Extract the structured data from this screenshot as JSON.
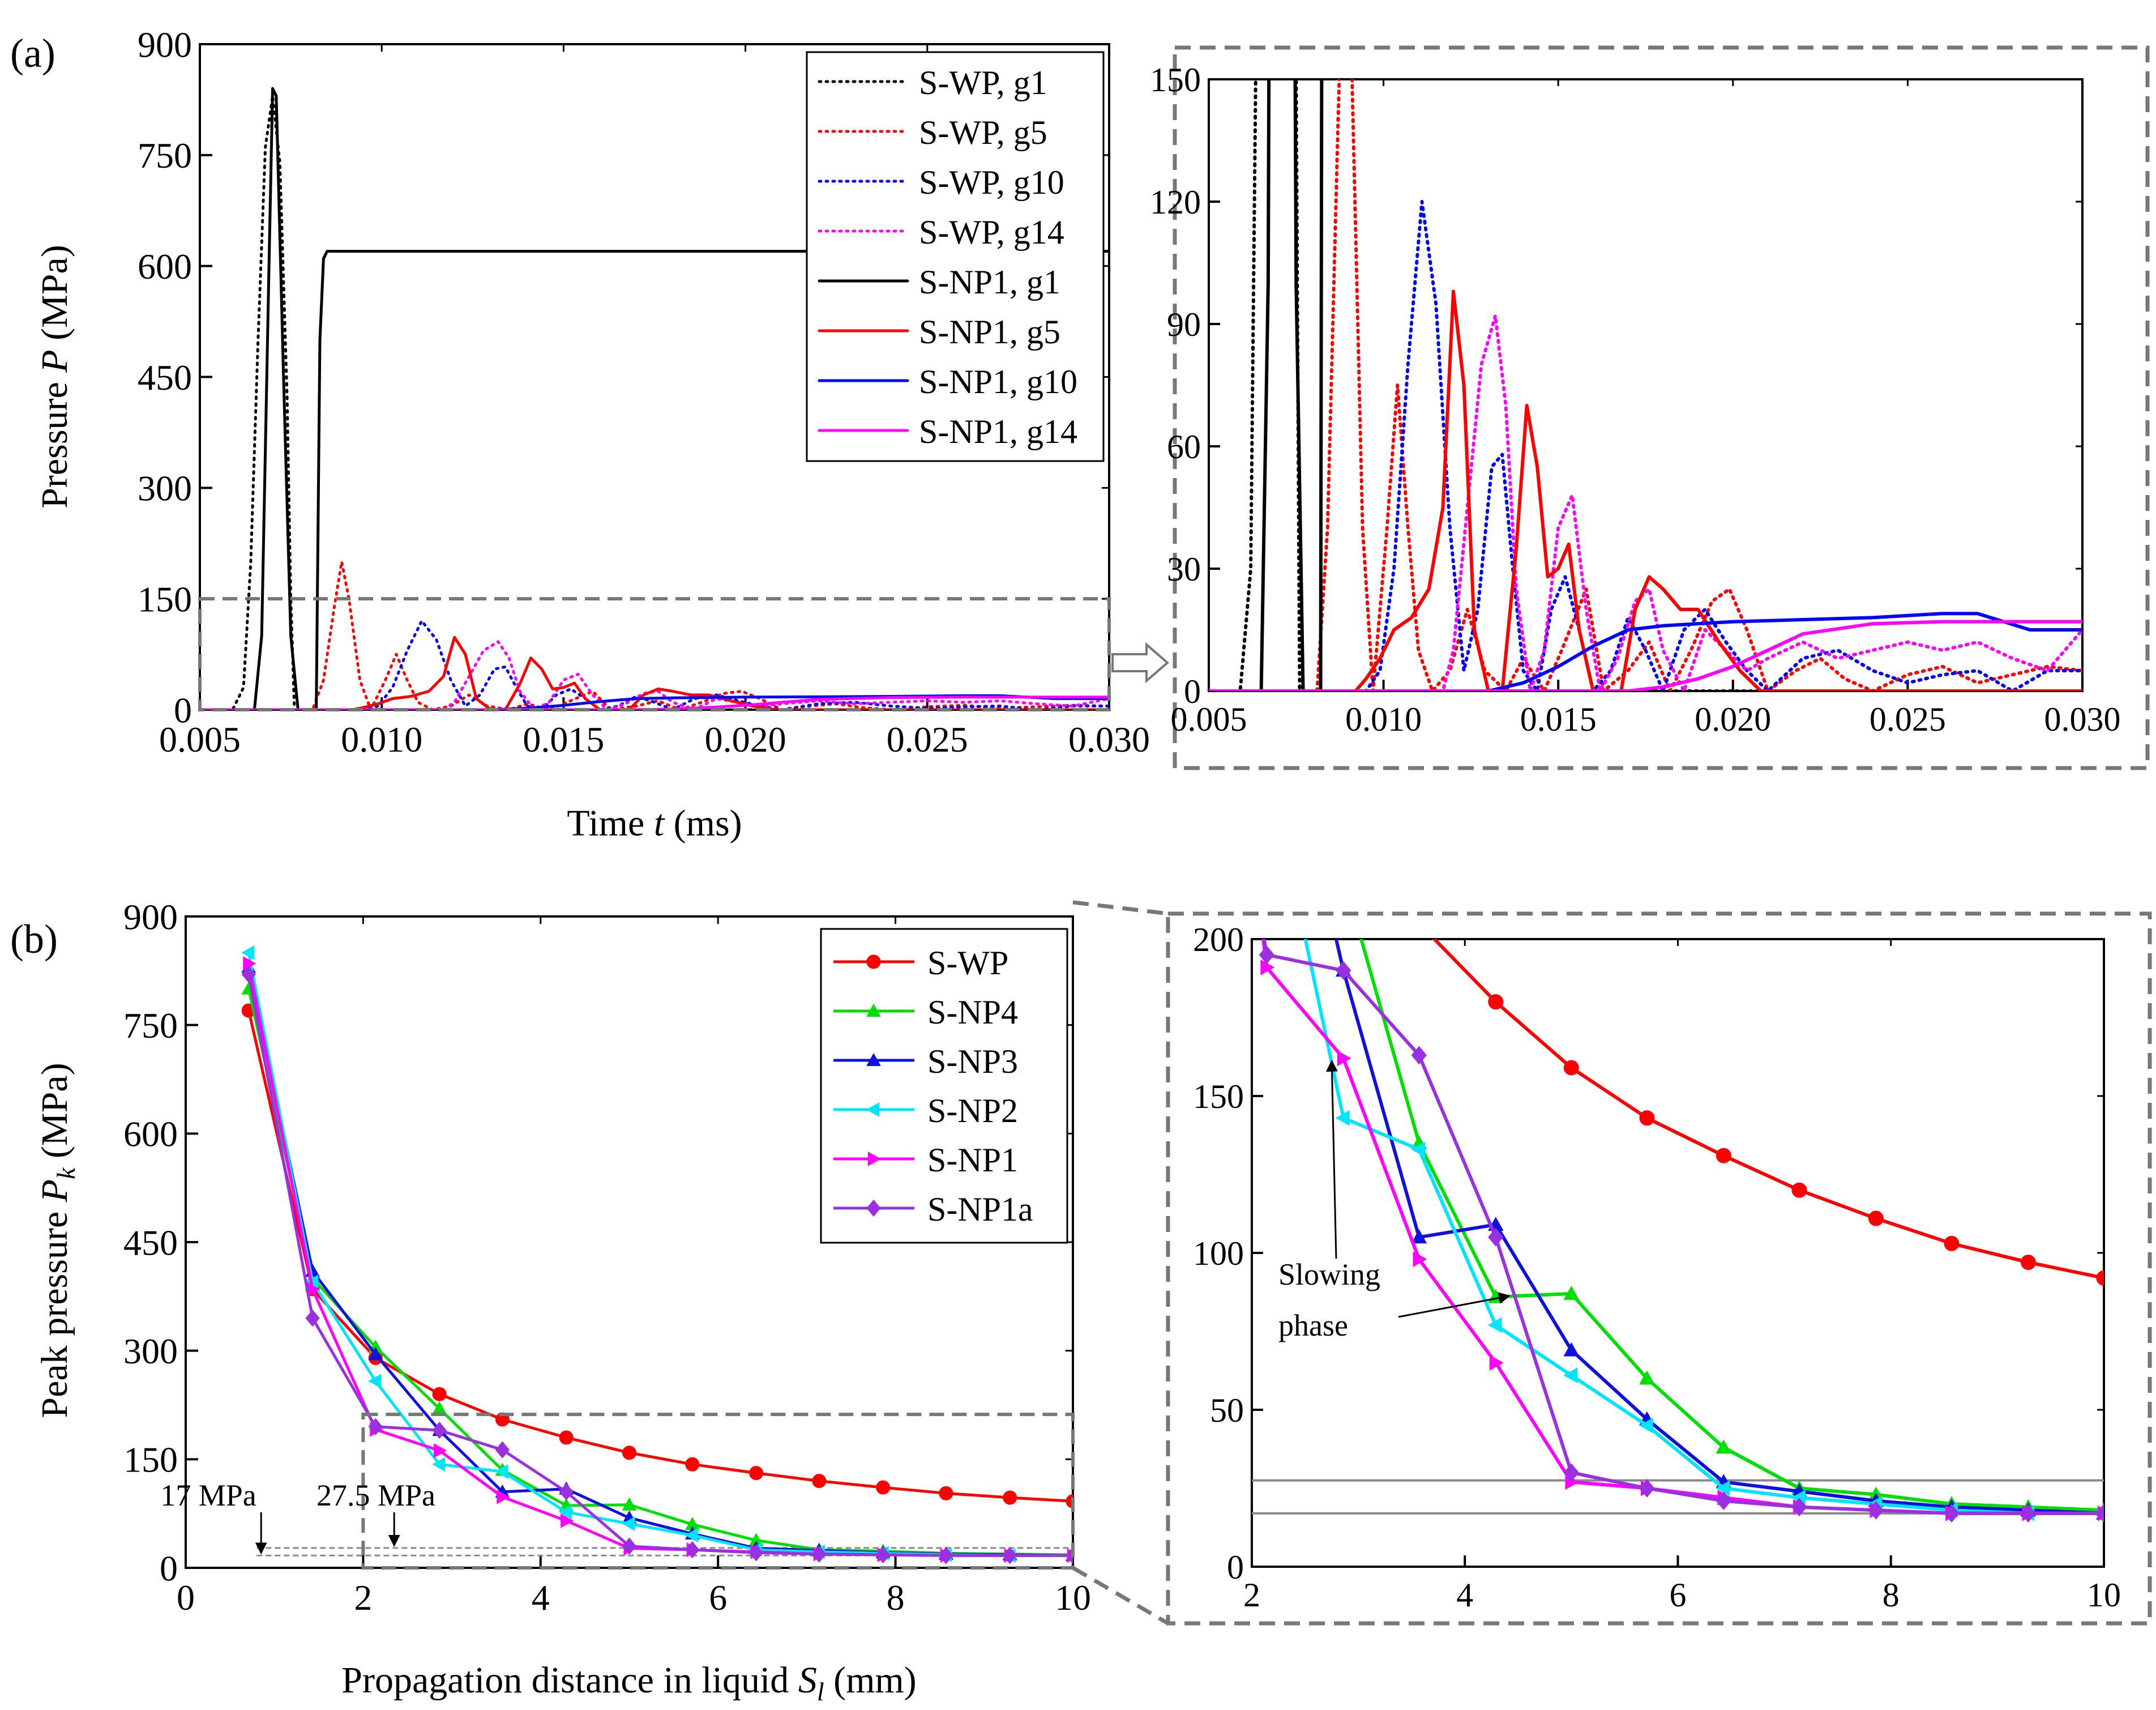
{
  "colors": {
    "black": "#000000",
    "red": "#ff0000",
    "blue": "#0000ff",
    "magenta": "#ff00ff",
    "green": "#00e000",
    "navy": "#1010e0",
    "cyan": "#00e5ff",
    "violet": "#9b30e0",
    "frame": "#777777",
    "refline": "#888888"
  },
  "chart_data": [
    {
      "id": "a-main",
      "type": "line",
      "panel_label": "(a)",
      "xlabel_prefix": "Time ",
      "xlabel_var": "t",
      "xlabel_suffix": " (ms)",
      "ylabel_prefix": "Pressure ",
      "ylabel_var": "P",
      "ylabel_suffix": " (MPa)",
      "xlim": [
        0.005,
        0.03
      ],
      "ylim": [
        0,
        900
      ],
      "xticks": [
        0.005,
        0.01,
        0.015,
        0.02,
        0.025,
        0.03
      ],
      "xtick_labels": [
        "0.005",
        "0.010",
        "0.015",
        "0.020",
        "0.025",
        "0.030"
      ],
      "yticks": [
        0,
        150,
        300,
        450,
        600,
        750,
        900
      ],
      "ytick_labels": [
        "0",
        "150",
        "300",
        "450",
        "600",
        "750",
        "900"
      ],
      "legend_position": "top-right",
      "zoom_box": {
        "x": [
          0.005,
          0.03
        ],
        "y": [
          0,
          150
        ]
      },
      "series": [
        {
          "name": "S-WP, g1",
          "color": "#000000",
          "dash": "dot",
          "x": [
            0.005,
            0.0059,
            0.0062,
            0.0064,
            0.0066,
            0.0068,
            0.007,
            0.0072,
            0.0074,
            0.0075,
            0.0076,
            0.03
          ],
          "y": [
            0,
            0,
            30,
            200,
            500,
            760,
            830,
            740,
            420,
            150,
            0,
            0
          ]
        },
        {
          "name": "S-WP, g5",
          "color": "#ff0000",
          "dash": "dot",
          "x": [
            0.005,
            0.0081,
            0.0084,
            0.0087,
            0.0089,
            0.0091,
            0.0094,
            0.0097,
            0.0101,
            0.0104,
            0.0107,
            0.011,
            0.0114,
            0.0119,
            0.0124,
            0.0129,
            0.0135,
            0.014,
            0.0146,
            0.0151,
            0.0158,
            0.0163,
            0.017,
            0.0176,
            0.0182,
            0.0188,
            0.0194,
            0.0199,
            0.0204,
            0.021,
            0.0218,
            0.0225,
            0.0232,
            0.024,
            0.025,
            0.026,
            0.027,
            0.028,
            0.029,
            0.03
          ],
          "y": [
            0,
            0,
            40,
            140,
            200,
            150,
            40,
            0,
            40,
            75,
            40,
            10,
            0,
            5,
            20,
            5,
            0,
            8,
            0,
            10,
            25,
            0,
            5,
            12,
            0,
            10,
            22,
            25,
            15,
            0,
            5,
            8,
            3,
            0,
            4,
            6,
            2,
            4,
            6,
            5
          ]
        },
        {
          "name": "S-WP, g10",
          "color": "#0000ff",
          "dash": "dot",
          "x": [
            0.005,
            0.0095,
            0.0099,
            0.0103,
            0.0107,
            0.0111,
            0.0115,
            0.0119,
            0.0123,
            0.0127,
            0.0131,
            0.0134,
            0.0137,
            0.014,
            0.0144,
            0.0148,
            0.0152,
            0.0156,
            0.016,
            0.0165,
            0.017,
            0.0175,
            0.018,
            0.0186,
            0.0192,
            0.0198,
            0.0204,
            0.021,
            0.022,
            0.023,
            0.024,
            0.025,
            0.026,
            0.027,
            0.028,
            0.029,
            0.03
          ],
          "y": [
            0,
            0,
            5,
            30,
            80,
            120,
            95,
            40,
            5,
            20,
            55,
            58,
            30,
            5,
            0,
            20,
            28,
            15,
            0,
            5,
            18,
            10,
            0,
            15,
            20,
            12,
            5,
            0,
            8,
            10,
            5,
            2,
            4,
            5,
            0,
            5,
            5
          ]
        },
        {
          "name": "S-WP, g14",
          "color": "#ff00ff",
          "dash": "dot",
          "x": [
            0.005,
            0.0117,
            0.012,
            0.0124,
            0.0128,
            0.0132,
            0.0135,
            0.0138,
            0.0142,
            0.0146,
            0.015,
            0.0154,
            0.0158,
            0.0162,
            0.0167,
            0.0172,
            0.0176,
            0.018,
            0.0186,
            0.0192,
            0.0198,
            0.0204,
            0.021,
            0.022,
            0.023,
            0.024,
            0.025,
            0.026,
            0.027,
            0.028,
            0.029,
            0.03
          ],
          "y": [
            0,
            0,
            10,
            45,
            80,
            92,
            70,
            25,
            0,
            10,
            40,
            48,
            20,
            0,
            8,
            22,
            25,
            10,
            0,
            15,
            10,
            5,
            8,
            12,
            8,
            10,
            12,
            10,
            12,
            8,
            5,
            15
          ]
        },
        {
          "name": "S-NP1, g1",
          "color": "#000000",
          "dash": "solid",
          "x": [
            0.005,
            0.0065,
            0.0067,
            0.0069,
            0.007,
            0.0071,
            0.0073,
            0.0075,
            0.0077,
            0.008,
            0.0082,
            0.0083,
            0.0084,
            0.0085,
            0.026,
            0.03
          ],
          "y": [
            0,
            0,
            100,
            600,
            840,
            830,
            450,
            100,
            0,
            0,
            0,
            500,
            610,
            620,
            620,
            620
          ]
        },
        {
          "name": "S-NP1, g5",
          "color": "#ff0000",
          "dash": "solid",
          "x": [
            0.005,
            0.0092,
            0.0095,
            0.0099,
            0.0103,
            0.0108,
            0.0113,
            0.0117,
            0.012,
            0.0123,
            0.0126,
            0.013,
            0.0134,
            0.0138,
            0.0141,
            0.0144,
            0.0147,
            0.015,
            0.0153,
            0.0156,
            0.016,
            0.0164,
            0.0168,
            0.0172,
            0.0176,
            0.018,
            0.0185,
            0.019,
            0.0196,
            0.0202,
            0.0208,
            0.0213,
            0.0218,
            0.0225,
            0.03
          ],
          "y": [
            0,
            0,
            3,
            8,
            15,
            18,
            25,
            45,
            98,
            75,
            15,
            0,
            0,
            35,
            70,
            55,
            28,
            30,
            36,
            15,
            0,
            0,
            0,
            20,
            28,
            25,
            20,
            20,
            12,
            5,
            0,
            0,
            0,
            0,
            0
          ]
        },
        {
          "name": "S-NP1, g10",
          "color": "#0000ff",
          "dash": "solid",
          "x": [
            0.005,
            0.013,
            0.014,
            0.015,
            0.016,
            0.017,
            0.018,
            0.02,
            0.022,
            0.024,
            0.026,
            0.027,
            0.0285,
            0.03
          ],
          "y": [
            0,
            0,
            2,
            6,
            11,
            15,
            16,
            17,
            17.5,
            18,
            19,
            19,
            15,
            15
          ]
        },
        {
          "name": "S-NP1, g14",
          "color": "#ff00ff",
          "dash": "solid",
          "x": [
            0.005,
            0.017,
            0.018,
            0.019,
            0.02,
            0.021,
            0.022,
            0.024,
            0.026,
            0.028,
            0.03
          ],
          "y": [
            0,
            0,
            1,
            3,
            6,
            10,
            14,
            16.5,
            17,
            17,
            17
          ]
        }
      ]
    },
    {
      "id": "a-zoom",
      "type": "line",
      "xlim": [
        0.005,
        0.03
      ],
      "ylim": [
        0,
        150
      ],
      "xticks": [
        0.005,
        0.01,
        0.015,
        0.02,
        0.025,
        0.03
      ],
      "xtick_labels": [
        "0.005",
        "0.010",
        "0.015",
        "0.020",
        "0.025",
        "0.030"
      ],
      "yticks": [
        0,
        30,
        60,
        90,
        120,
        150
      ],
      "ytick_labels": [
        "0",
        "30",
        "60",
        "90",
        "120",
        "150"
      ],
      "series_ref": "a-main"
    },
    {
      "id": "b-main",
      "type": "line",
      "panel_label": "(b)",
      "xlabel_prefix": "Propagation distance in liquid ",
      "xlabel_var": "S",
      "xlabel_sub": "l",
      "xlabel_suffix": " (mm)",
      "ylabel_prefix": "Peak pressure ",
      "ylabel_var": "P",
      "ylabel_sub": "k",
      "ylabel_suffix": " (MPa)",
      "xlim": [
        0,
        10
      ],
      "ylim": [
        0,
        900
      ],
      "xticks": [
        0,
        2,
        4,
        6,
        8,
        10
      ],
      "xtick_labels": [
        "0",
        "2",
        "4",
        "6",
        "8",
        "10"
      ],
      "yticks": [
        0,
        150,
        300,
        450,
        600,
        750,
        900
      ],
      "ytick_labels": [
        "0",
        "150",
        "300",
        "450",
        "600",
        "750",
        "900"
      ],
      "legend_position": "top-right",
      "zoom_box": {
        "x": [
          2,
          10
        ],
        "y": [
          0,
          212
        ]
      },
      "ref_lines": [
        {
          "y": 17,
          "label": "17 MPa",
          "arrow_x": 0.85
        },
        {
          "y": 27.5,
          "label": "27.5 MPa",
          "arrow_x": 2.35
        }
      ],
      "series": [
        {
          "name": "S-WP",
          "color": "#ff0000",
          "marker": "circle",
          "x": [
            0.71,
            1.43,
            2.14,
            2.86,
            3.57,
            4.29,
            5.0,
            5.71,
            6.43,
            7.14,
            7.86,
            8.57,
            9.29,
            10.0
          ],
          "y": [
            770,
            385,
            290,
            240,
            205,
            180,
            159,
            143,
            131,
            120,
            111,
            103,
            97,
            92
          ]
        },
        {
          "name": "S-NP4",
          "color": "#00e000",
          "marker": "triangle-up",
          "x": [
            0.71,
            1.43,
            2.14,
            2.86,
            3.57,
            4.29,
            5.0,
            5.71,
            6.43,
            7.14,
            7.86,
            8.57,
            9.29,
            10.0
          ],
          "y": [
            800,
            400,
            305,
            220,
            135,
            86,
            87,
            60,
            38,
            25,
            23,
            20,
            19,
            18
          ]
        },
        {
          "name": "S-NP3",
          "color": "#1010e0",
          "marker": "triangle-up",
          "x": [
            0.71,
            1.43,
            2.14,
            2.86,
            3.57,
            4.29,
            5.0,
            5.71,
            6.43,
            7.14,
            7.86,
            8.57,
            9.29,
            10.0
          ],
          "y": [
            830,
            410,
            295,
            190,
            105,
            109,
            69,
            47,
            27,
            24,
            21,
            19,
            18,
            17
          ]
        },
        {
          "name": "S-NP2",
          "color": "#00e5ff",
          "marker": "triangle-left",
          "x": [
            0.71,
            1.43,
            2.14,
            2.86,
            3.57,
            4.29,
            5.0,
            5.71,
            6.43,
            7.14,
            7.86,
            8.57,
            9.29,
            10.0
          ],
          "y": [
            850,
            395,
            258,
            143,
            133,
            77,
            61,
            45,
            25,
            22,
            20,
            18,
            17,
            17
          ]
        },
        {
          "name": "S-NP1",
          "color": "#ff00ff",
          "marker": "triangle-right",
          "x": [
            0.71,
            1.43,
            2.14,
            2.86,
            3.57,
            4.29,
            5.0,
            5.71,
            6.43,
            7.14,
            7.86,
            8.57,
            9.29,
            10.0
          ],
          "y": [
            835,
            385,
            191,
            162,
            98,
            65,
            27,
            25,
            22,
            19,
            18,
            17,
            17,
            17
          ]
        },
        {
          "name": "S-NP1a",
          "color": "#9b30e0",
          "marker": "diamond",
          "x": [
            0.71,
            1.43,
            2.14,
            2.86,
            3.57,
            4.29,
            5.0,
            5.71,
            6.43,
            7.14,
            7.86,
            8.57,
            9.29,
            10.0
          ],
          "y": [
            820,
            345,
            195,
            190,
            163,
            105,
            30,
            25,
            21,
            19,
            18,
            17,
            17,
            17
          ]
        }
      ]
    },
    {
      "id": "b-zoom",
      "type": "line",
      "xlim": [
        2,
        10
      ],
      "ylim": [
        0,
        200
      ],
      "xticks": [
        2,
        4,
        6,
        8,
        10
      ],
      "xtick_labels": [
        "2",
        "4",
        "6",
        "8",
        "10"
      ],
      "yticks": [
        0,
        50,
        100,
        150,
        200
      ],
      "ytick_labels": [
        "0",
        "50",
        "100",
        "150",
        "200"
      ],
      "series_ref": "b-main",
      "ref_lines": [
        17,
        27.5
      ],
      "annotation": {
        "line1": "Slowing",
        "line2": "phase",
        "targets": [
          {
            "x": 2.75,
            "y": 163
          },
          {
            "x": 4.45,
            "y": 87
          }
        ]
      }
    }
  ]
}
